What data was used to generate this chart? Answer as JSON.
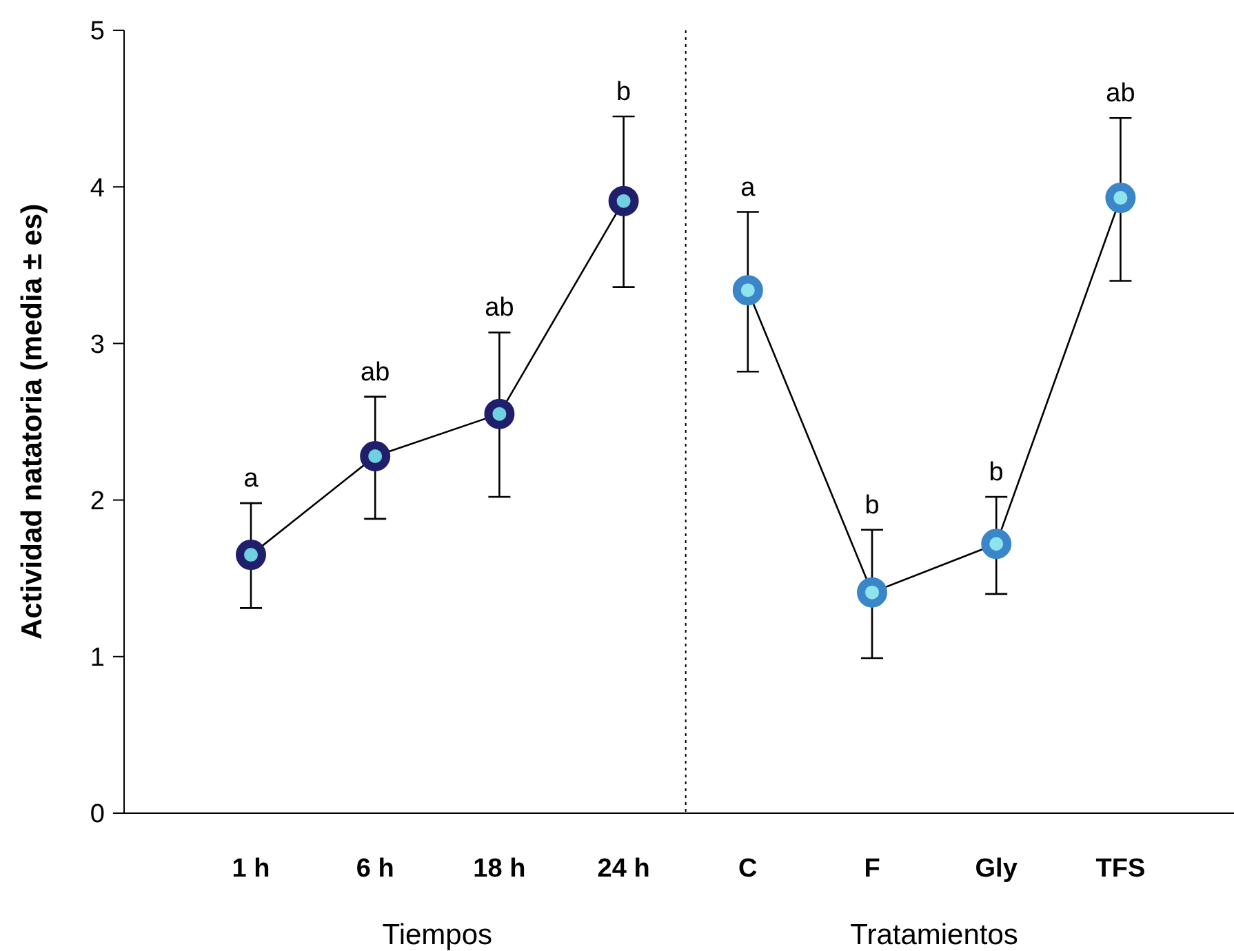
{
  "chart_data": {
    "type": "line",
    "ylabel": "Actividad natatoria (media ± es)",
    "categories": [
      "1 h",
      "6 h",
      "18 h",
      "24 h",
      "C",
      "F",
      "Gly",
      "TFS"
    ],
    "ylim": [
      0,
      5
    ],
    "yticks": [
      0,
      1,
      2,
      3,
      4,
      5
    ],
    "grid": false,
    "marker": "circle",
    "line_style": "solid",
    "series": [
      {
        "color": "#1f1f6b",
        "values": [
          1.65,
          2.28,
          2.55,
          3.91,
          null,
          null,
          null,
          null
        ],
        "errors": [
          [
            1.31,
            1.98
          ],
          [
            1.88,
            2.66
          ],
          [
            2.02,
            3.07
          ],
          [
            3.36,
            4.45
          ],
          null,
          null,
          null,
          null
        ]
      },
      {
        "color": "#3a86c8",
        "values": [
          null,
          null,
          null,
          null,
          3.34,
          1.41,
          1.72,
          3.93
        ],
        "errors": [
          null,
          null,
          null,
          null,
          [
            2.82,
            3.84
          ],
          [
            0.99,
            1.81
          ],
          [
            1.4,
            2.02
          ],
          [
            3.4,
            4.44
          ]
        ]
      }
    ],
    "annotations": [
      "Tiempos",
      "Tratamientos",
      {
        "text": "a",
        "x": "1 h",
        "y": 1.98
      },
      {
        "text": "ab",
        "x": "6 h",
        "y": 2.66
      },
      {
        "text": "ab",
        "x": "18 h",
        "y": 3.07
      },
      {
        "text": "b",
        "x": "24 h",
        "y": 4.45
      },
      {
        "text": "a",
        "x": "C",
        "y": 3.84
      },
      {
        "text": "b",
        "x": "F",
        "y": 1.81
      },
      {
        "text": "b",
        "x": "Gly",
        "y": 2.02
      },
      {
        "text": "ab",
        "x": "TFS",
        "y": 4.44
      }
    ]
  }
}
